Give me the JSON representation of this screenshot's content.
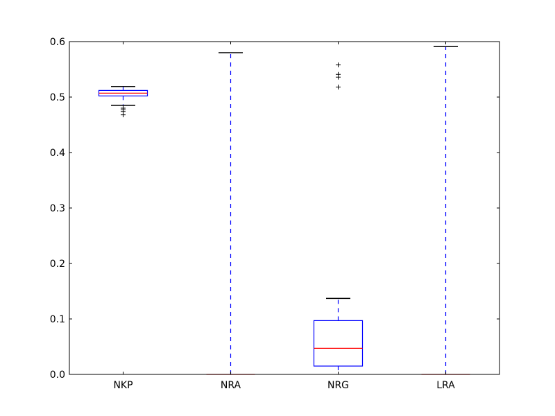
{
  "chart_data": {
    "type": "box",
    "title": "",
    "xlabel": "",
    "ylabel": "",
    "ylim": [
      0.0,
      0.6
    ],
    "yticks": [
      "0.0",
      "0.1",
      "0.2",
      "0.3",
      "0.4",
      "0.5",
      "0.6"
    ],
    "grid": false,
    "categories": [
      "NKP",
      "NRA",
      "NRG",
      "LRA"
    ],
    "boxes": [
      {
        "label": "NKP",
        "whisker_low": 0.485,
        "q1": 0.502,
        "median": 0.507,
        "q3": 0.512,
        "whisker_high": 0.519,
        "outliers": [
          0.48,
          0.477,
          0.474,
          0.468
        ]
      },
      {
        "label": "NRA",
        "whisker_low": 0.0,
        "q1": 0.0,
        "median": 0.0,
        "q3": 0.0,
        "whisker_high": 0.58,
        "outliers": []
      },
      {
        "label": "NRG",
        "whisker_low": 0.0,
        "q1": 0.015,
        "median": 0.047,
        "q3": 0.097,
        "whisker_high": 0.137,
        "outliers": [
          0.558,
          0.541,
          0.536,
          0.518
        ]
      },
      {
        "label": "LRA",
        "whisker_low": 0.0,
        "q1": 0.0,
        "median": 0.0,
        "q3": 0.0,
        "whisker_high": 0.591,
        "outliers": []
      }
    ],
    "colors": {
      "box": "#0000ff",
      "whisker": "#0000ff",
      "cap": "#000000",
      "median": "#ff0000",
      "outlier": "#000000",
      "axes": "#000000"
    }
  }
}
